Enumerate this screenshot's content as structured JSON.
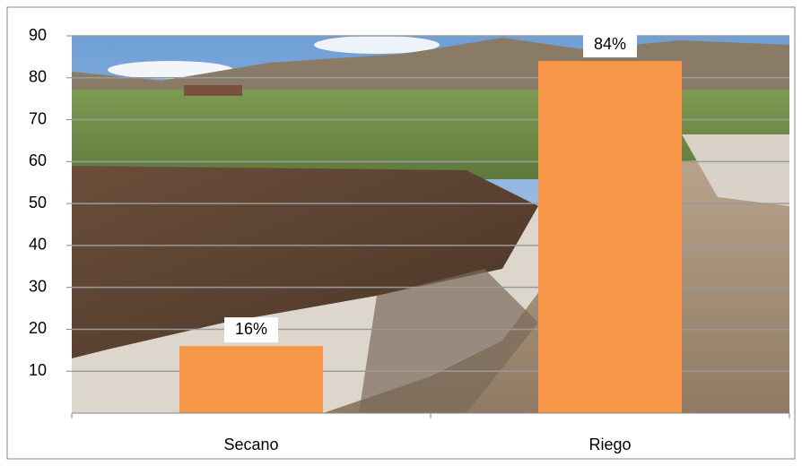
{
  "chart_data": {
    "type": "bar",
    "categories": [
      "Secano",
      "Riego"
    ],
    "values": [
      16,
      84
    ],
    "value_labels": [
      "16%",
      "84%"
    ],
    "color": "#f79646",
    "ylim": [
      0,
      90
    ],
    "yticks": [
      10,
      20,
      30,
      40,
      50,
      60,
      70,
      80,
      90
    ],
    "grid": true
  }
}
